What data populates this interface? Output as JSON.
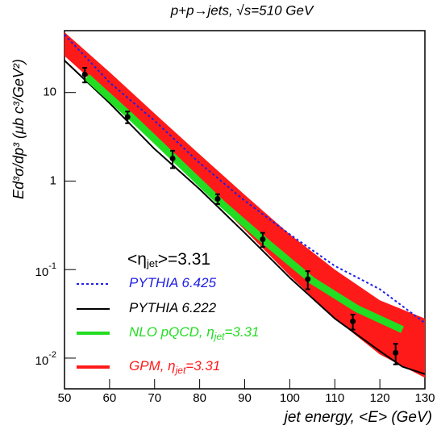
{
  "chart_data": {
    "type": "line",
    "title": "p+p→jets, √s=510 GeV",
    "x_label": "jet energy, <E> (GeV)",
    "y_label": "Ed³σ/dp³ (μb c³/GeV²)",
    "annotation_parts": [
      "<η",
      "jet",
      ">=3.31"
    ],
    "log_y": true,
    "xlim": [
      50,
      130
    ],
    "xticks": [
      50,
      60,
      70,
      80,
      90,
      100,
      110,
      120,
      130
    ],
    "ylim": [
      0.0045,
      50
    ],
    "yticks": [
      {
        "value": 0.01,
        "label": "10",
        "sup": "-2"
      },
      {
        "value": 0.1,
        "label": "10",
        "sup": "-1"
      },
      {
        "value": 1,
        "label": "1"
      },
      {
        "value": 10,
        "label": "10"
      }
    ],
    "series": [
      {
        "name_parts": [
          "PYTHIA 6.425"
        ],
        "color": "#1f1fe6",
        "style": "dotted",
        "x": [
          50,
          60,
          70,
          80,
          90,
          100,
          110,
          120,
          130
        ],
        "values": [
          45,
          13,
          4.8,
          1.6,
          0.6,
          0.25,
          0.11,
          0.06,
          0.025
        ]
      },
      {
        "name_parts": [
          "PYTHIA 6.222"
        ],
        "color": "#000000",
        "style": "solid",
        "x": [
          50,
          60,
          70,
          80,
          90,
          100,
          110,
          120,
          125,
          130
        ],
        "values": [
          23,
          7.6,
          2.3,
          0.81,
          0.26,
          0.081,
          0.028,
          0.012,
          0.008,
          0.0066
        ]
      },
      {
        "name_parts": [
          "NLO pQCD, η",
          "jet",
          "=3.31"
        ],
        "color": "#22dd22",
        "style": "thick",
        "x": [
          55,
          65,
          75,
          85,
          95,
          105,
          115,
          125
        ],
        "values": [
          15,
          5.2,
          1.7,
          0.55,
          0.2,
          0.075,
          0.036,
          0.021
        ]
      },
      {
        "name_parts": [
          "GPM, η",
          "jet",
          "=3.31"
        ],
        "color": "#ff1a1a",
        "style": "band",
        "x": [
          50,
          60,
          70,
          80,
          90,
          100,
          110,
          120,
          130
        ],
        "high": [
          48,
          17,
          5.8,
          2.0,
          0.7,
          0.25,
          0.1,
          0.045,
          0.028
        ],
        "low": [
          26,
          9,
          2.9,
          0.9,
          0.28,
          0.085,
          0.028,
          0.011,
          0.006
        ]
      }
    ],
    "points": {
      "color": "#000000",
      "x": [
        54.5,
        64,
        74,
        84,
        94,
        104,
        114,
        123.5
      ],
      "values": [
        16,
        5.3,
        1.8,
        0.63,
        0.22,
        0.078,
        0.026,
        0.0115
      ],
      "errors": [
        3,
        0.8,
        0.4,
        0.08,
        0.04,
        0.018,
        0.005,
        0.003
      ]
    }
  }
}
